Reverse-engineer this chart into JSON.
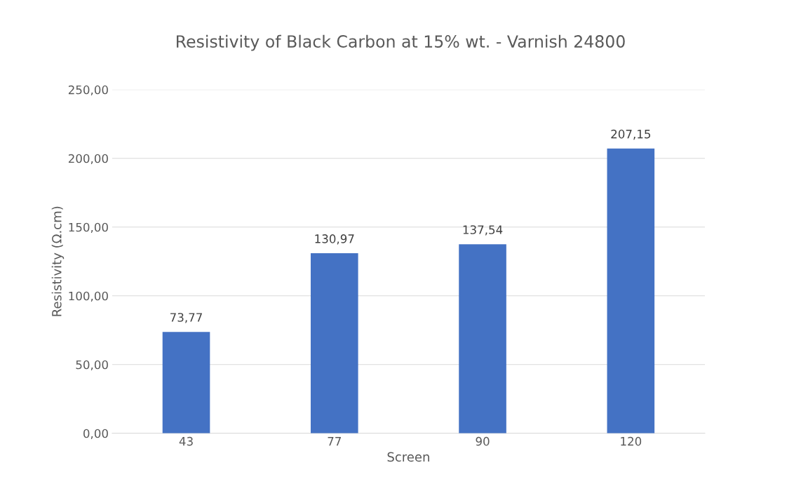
{
  "chart_data": {
    "type": "bar",
    "title": "Resistivity of Black Carbon at 15% wt. - Varnish 24800",
    "xlabel": "Screen",
    "ylabel": "Resistivity (Ω.cm)",
    "categories": [
      "43",
      "77",
      "90",
      "120"
    ],
    "values": [
      73.77,
      130.97,
      137.54,
      207.15
    ],
    "value_labels": [
      "73,77",
      "130,97",
      "137,54",
      "207,15"
    ],
    "color": "#4472c4",
    "ylim": [
      0,
      250
    ],
    "yticks": [
      {
        "value": 0,
        "label": "0,00"
      },
      {
        "value": 50,
        "label": "50,00"
      },
      {
        "value": 100,
        "label": "100,00"
      },
      {
        "value": 150,
        "label": "150,00"
      },
      {
        "value": 200,
        "label": "200,00"
      },
      {
        "value": 250,
        "label": "250,00"
      }
    ],
    "grid": "y"
  }
}
